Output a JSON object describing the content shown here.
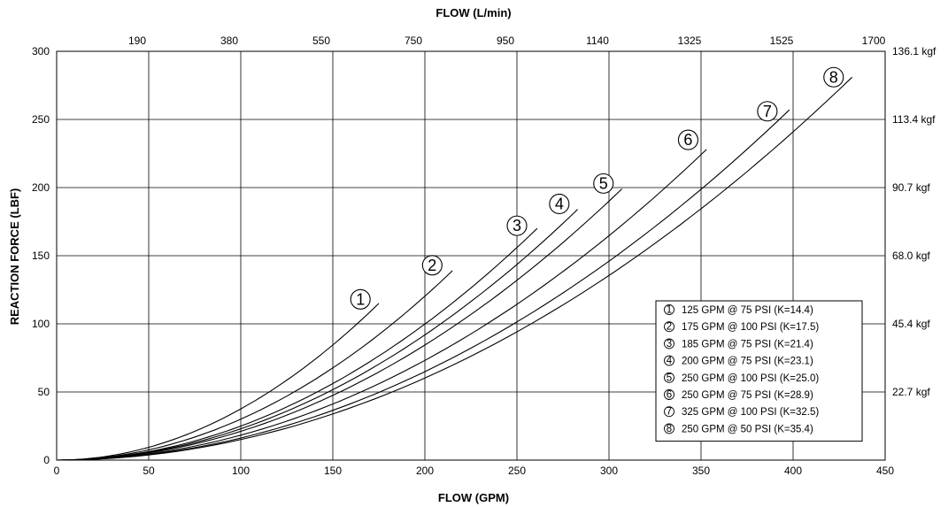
{
  "chart_data": {
    "type": "line",
    "xlabel": "FLOW (GPM)",
    "ylabel": "REACTION FORCE (LBF)",
    "top_xlabel": "FLOW (L/min)",
    "xlim": [
      0,
      450
    ],
    "ylim": [
      0,
      300
    ],
    "x_ticks": [
      "0",
      "50",
      "100",
      "150",
      "200",
      "250",
      "300",
      "350",
      "400",
      "450"
    ],
    "y_ticks": [
      "0",
      "50",
      "100",
      "150",
      "200",
      "250",
      "300"
    ],
    "top_x_ticks": [
      {
        "gpm": 50,
        "label": "190"
      },
      {
        "gpm": 100,
        "label": "380"
      },
      {
        "gpm": 150,
        "label": "550"
      },
      {
        "gpm": 200,
        "label": "750"
      },
      {
        "gpm": 250,
        "label": "950"
      },
      {
        "gpm": 300,
        "label": "1140"
      },
      {
        "gpm": 350,
        "label": "1325"
      },
      {
        "gpm": 400,
        "label": "1525"
      },
      {
        "gpm": 450,
        "label": "1700"
      }
    ],
    "right_y_ticks": [
      {
        "lbf": 300,
        "label": "136.1 kgf"
      },
      {
        "lbf": 250,
        "label": "113.4 kgf"
      },
      {
        "lbf": 200,
        "label": "90.7 kgf"
      },
      {
        "lbf": 150,
        "label": "68.0 kgf"
      },
      {
        "lbf": 100,
        "label": "45.4 kgf"
      },
      {
        "lbf": 50,
        "label": "22.7 kgf"
      }
    ],
    "grid": true,
    "legend_position": "lower-right",
    "series": [
      {
        "marker": "1",
        "legend": "125 GPM @ 75 PSI (K=14.4)",
        "x_end": 175,
        "y_end": 115,
        "marker_at": [
          165,
          118
        ]
      },
      {
        "marker": "2",
        "legend": "175 GPM @ 100 PSI (K=17.5)",
        "x_end": 215,
        "y_end": 139,
        "marker_at": [
          204,
          143
        ]
      },
      {
        "marker": "3",
        "legend": "185 GPM @ 75 PSI (K=21.4)",
        "x_end": 261,
        "y_end": 170,
        "marker_at": [
          250,
          172
        ]
      },
      {
        "marker": "4",
        "legend": "200 GPM @ 75 PSI (K=23.1)",
        "x_end": 283,
        "y_end": 184,
        "marker_at": [
          273,
          188
        ]
      },
      {
        "marker": "5",
        "legend": "250 GPM @ 100 PSI (K=25.0)",
        "x_end": 307,
        "y_end": 199,
        "marker_at": [
          297,
          203
        ]
      },
      {
        "marker": "6",
        "legend": "250 GPM @ 75 PSI (K=28.9)",
        "x_end": 353,
        "y_end": 228,
        "marker_at": [
          343,
          235
        ]
      },
      {
        "marker": "7",
        "legend": "325 GPM @ 100 PSI (K=32.5)",
        "x_end": 398,
        "y_end": 257,
        "marker_at": [
          386,
          256
        ]
      },
      {
        "marker": "8",
        "legend": "250 GPM @ 50 PSI (K=35.4)",
        "x_end": 432,
        "y_end": 281,
        "marker_at": [
          422,
          281
        ]
      }
    ]
  }
}
